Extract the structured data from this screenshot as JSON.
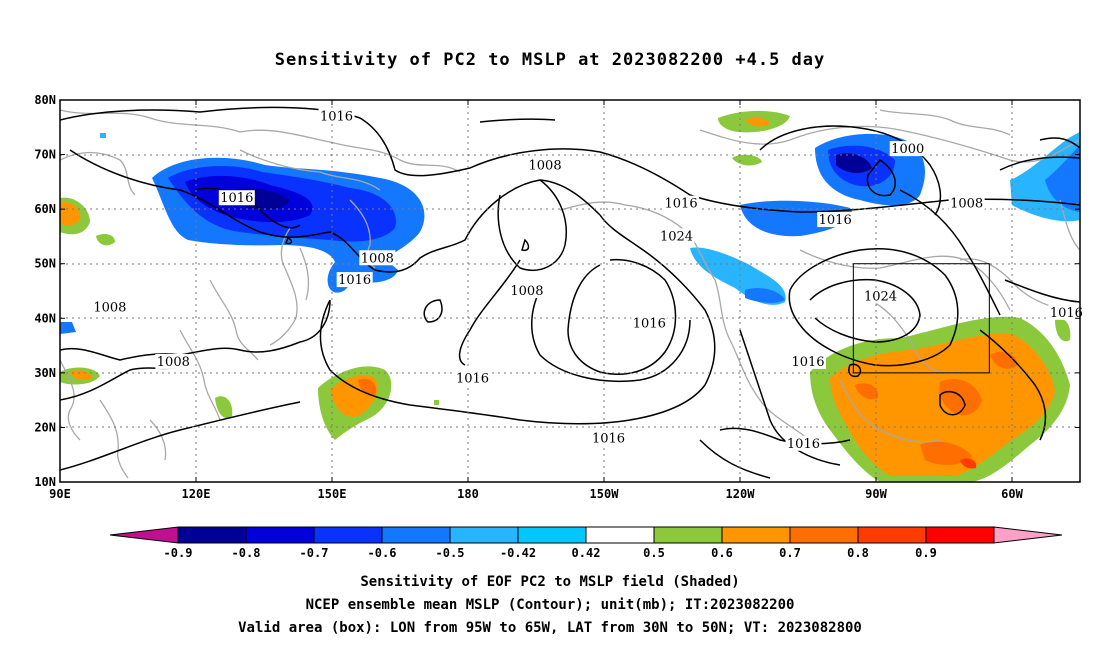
{
  "title": "Sensitivity of PC2 to MSLP at 2023082200 +4.5 day",
  "map": {
    "lat_labels": [
      "80N",
      "70N",
      "60N",
      "50N",
      "40N",
      "30N",
      "20N",
      "10N"
    ],
    "lon_labels": [
      "90E",
      "120E",
      "150E",
      "180",
      "150W",
      "120W",
      "90W",
      "60W"
    ],
    "lon_range": [
      90,
      315
    ],
    "lat_range": [
      10,
      80
    ],
    "valid_box": {
      "lon": [
        265,
        295
      ],
      "lat": [
        30,
        50
      ]
    },
    "contour_labels": [
      {
        "text": "1016",
        "lon": 151,
        "lat": 77
      },
      {
        "text": "1008",
        "lon": 197,
        "lat": 68
      },
      {
        "text": "1016",
        "lon": 129,
        "lat": 62
      },
      {
        "text": "1016",
        "lon": 227,
        "lat": 61
      },
      {
        "text": "1008",
        "lon": 160,
        "lat": 51
      },
      {
        "text": "1024",
        "lon": 226,
        "lat": 55
      },
      {
        "text": "1008",
        "lon": 193,
        "lat": 45
      },
      {
        "text": "1016",
        "lon": 155,
        "lat": 47
      },
      {
        "text": "1008",
        "lon": 101,
        "lat": 42
      },
      {
        "text": "1016",
        "lon": 220,
        "lat": 39
      },
      {
        "text": "1008",
        "lon": 115,
        "lat": 32
      },
      {
        "text": "1016",
        "lon": 181,
        "lat": 29
      },
      {
        "text": "1016",
        "lon": 255,
        "lat": 32
      },
      {
        "text": "1016",
        "lon": 211,
        "lat": 18
      },
      {
        "text": "1016",
        "lon": 254,
        "lat": 17
      },
      {
        "text": "1000",
        "lon": 277,
        "lat": 71
      },
      {
        "text": "1016",
        "lon": 261,
        "lat": 58
      },
      {
        "text": "1008",
        "lon": 290,
        "lat": 61
      },
      {
        "text": "1024",
        "lon": 271,
        "lat": 44
      },
      {
        "text": "1016",
        "lon": 312,
        "lat": 41
      }
    ]
  },
  "colorbar": {
    "labels": [
      "-0.9",
      "-0.8",
      "-0.7",
      "-0.6",
      "-0.5",
      "-0.42",
      "0.42",
      "0.5",
      "0.6",
      "0.7",
      "0.8",
      "0.9"
    ],
    "colors": [
      "#c0108f",
      "#000096",
      "#0000dc",
      "#0a32ff",
      "#1478ff",
      "#28b4ff",
      "#00c8ff",
      "#ffffff",
      "#8cc83c",
      "#ff9600",
      "#ff6e00",
      "#ff3c00",
      "#ff0000",
      "#ffa0c8"
    ]
  },
  "captions": {
    "line1": "Sensitivity of EOF PC2 to MSLP field (Shaded)",
    "line2": "NCEP ensemble mean MSLP (Contour); unit(mb); IT:2023082200",
    "line3": "Valid area (box): LON from 95W to 65W, LAT from 30N to 50N; VT: 2023082800"
  }
}
